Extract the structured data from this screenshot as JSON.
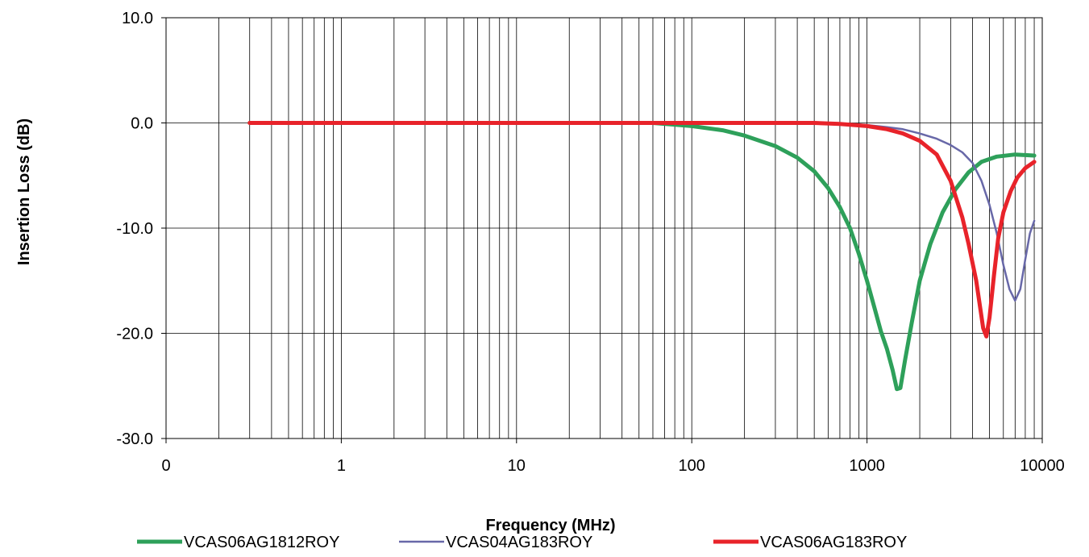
{
  "chart_data": {
    "type": "line",
    "title": "",
    "xlabel": "Frequency (MHz)",
    "ylabel": "Insertion Loss (dB)",
    "x_scale": "log",
    "xlim": [
      0.1,
      10000
    ],
    "ylim": [
      -30,
      10
    ],
    "x_tick_labels": [
      "0",
      "1",
      "10",
      "100",
      "1000",
      "10000"
    ],
    "x_tick_values": [
      0.1,
      1,
      10,
      100,
      1000,
      10000
    ],
    "y_tick_labels": [
      "10.0",
      "0.0",
      "-10.0",
      "-20.0",
      "-30.0"
    ],
    "y_tick_values": [
      10,
      0,
      -10,
      -20,
      -30
    ],
    "grid": true,
    "legend_position": "bottom",
    "series": [
      {
        "name": "VCAS06AG1812ROY",
        "color": "#2ea05a",
        "x": [
          0.3,
          1,
          10,
          60,
          100,
          150,
          200,
          300,
          400,
          500,
          600,
          700,
          800,
          900,
          1000,
          1100,
          1200,
          1300,
          1400,
          1480,
          1550,
          1650,
          1800,
          2000,
          2300,
          2700,
          3200,
          3800,
          4500,
          5500,
          7000,
          9000
        ],
        "y": [
          0,
          0,
          0,
          0,
          -0.3,
          -0.7,
          -1.2,
          -2.2,
          -3.3,
          -4.6,
          -6.2,
          -8.0,
          -10.0,
          -12.5,
          -15.0,
          -17.5,
          -19.8,
          -21.5,
          -23.5,
          -25.3,
          -25.2,
          -22.5,
          -19.0,
          -15.0,
          -11.5,
          -8.5,
          -6.3,
          -4.7,
          -3.7,
          -3.2,
          -3.0,
          -3.1
        ]
      },
      {
        "name": "VCAS04AG183ROY",
        "color": "#6868a8",
        "x": [
          0.3,
          1,
          10,
          100,
          500,
          800,
          1000,
          1300,
          1600,
          2000,
          2500,
          3000,
          3500,
          4000,
          4500,
          5000,
          5500,
          6000,
          6500,
          7000,
          7500,
          8000,
          8500,
          9000
        ],
        "y": [
          0,
          0,
          0,
          0,
          0,
          -0.1,
          -0.2,
          -0.4,
          -0.6,
          -1.0,
          -1.5,
          -2.1,
          -2.8,
          -3.8,
          -5.5,
          -7.8,
          -10.5,
          -13.5,
          -15.8,
          -16.9,
          -15.8,
          -13.0,
          -10.5,
          -9.3
        ]
      },
      {
        "name": "VCAS06AG183ROY",
        "color": "#e8232a",
        "x": [
          0.3,
          1,
          10,
          100,
          300,
          500,
          700,
          1000,
          1300,
          1600,
          2000,
          2500,
          3000,
          3500,
          3800,
          4200,
          4600,
          4800,
          5000,
          5300,
          5600,
          6000,
          6600,
          7200,
          8000,
          9000
        ],
        "y": [
          0,
          0,
          0,
          0,
          0,
          0,
          -0.1,
          -0.3,
          -0.6,
          -1.0,
          -1.7,
          -3.0,
          -5.5,
          -9.0,
          -11.5,
          -15.0,
          -19.5,
          -20.3,
          -18.5,
          -14.5,
          -11.0,
          -8.5,
          -6.5,
          -5.2,
          -4.3,
          -3.7
        ]
      }
    ]
  }
}
